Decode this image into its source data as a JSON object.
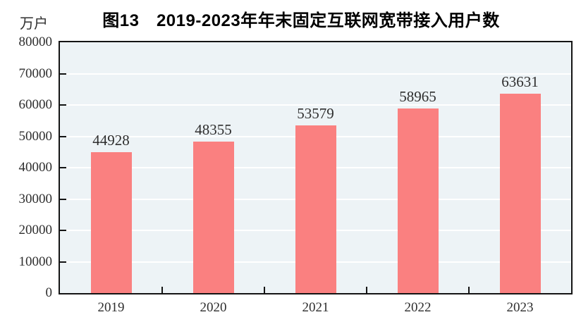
{
  "page": {
    "background": "#ffffff"
  },
  "chart_data": {
    "type": "bar",
    "title": "图13　2019-2023年年末固定互联网宽带接入用户数",
    "unit_label": "万户",
    "categories": [
      "2019",
      "2020",
      "2021",
      "2022",
      "2023"
    ],
    "values": [
      44928,
      48355,
      53579,
      58965,
      63631
    ],
    "xlabel": "",
    "ylabel": "万户",
    "ylim": [
      0,
      80000
    ],
    "yticks": [
      0,
      10000,
      20000,
      30000,
      40000,
      50000,
      60000,
      70000,
      80000
    ],
    "grid": "horizontal",
    "legend": "none",
    "colors": {
      "bar": "#fa8080",
      "plot_background": "#edf3f6",
      "gridline": "#ffffff",
      "axis_border": "#141414",
      "tick_mark": "#141414",
      "label_text": "#2e2e2e",
      "title_text": "#000000"
    }
  }
}
